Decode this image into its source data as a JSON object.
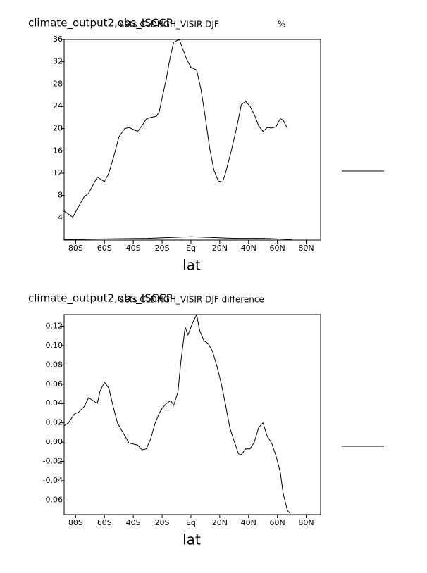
{
  "chart_data": [
    {
      "type": "line",
      "title": "climate_output2,obs_ISCCP",
      "subtitle": "sets CLDHGH_VISIR DJF",
      "units": "%",
      "x_label": "lat",
      "xlim": [
        -88,
        90
      ],
      "ylim": [
        0,
        36
      ],
      "xticks": [
        {
          "value": -80,
          "label": "80S"
        },
        {
          "value": -60,
          "label": "60S"
        },
        {
          "value": -40,
          "label": "40S"
        },
        {
          "value": -20,
          "label": "20S"
        },
        {
          "value": 0,
          "label": "Eq"
        },
        {
          "value": 20,
          "label": "20N"
        },
        {
          "value": 40,
          "label": "40N"
        },
        {
          "value": 60,
          "label": "60N"
        },
        {
          "value": 80,
          "label": "80N"
        }
      ],
      "yticks": [
        4,
        8,
        12,
        16,
        20,
        24,
        28,
        32,
        36
      ],
      "series": [
        {
          "color": "#000000",
          "x": [
            -88,
            -82,
            -78,
            -74,
            -71,
            -65,
            -60,
            -57,
            -53,
            -50,
            -46,
            -43,
            -37,
            -34,
            -31,
            -28,
            -24,
            -22,
            -20,
            -17,
            -15,
            -12,
            -8,
            -6,
            -3,
            0,
            4,
            7,
            10,
            13,
            16,
            19,
            22,
            24,
            28,
            32,
            35,
            38,
            41,
            44,
            47,
            50,
            53,
            56,
            59,
            62,
            64,
            67
          ],
          "values": [
            5.2,
            4.1,
            6,
            7.8,
            8.4,
            11.3,
            10.5,
            12,
            15.5,
            18.5,
            20,
            20.2,
            19.5,
            20.5,
            21.7,
            22,
            22.2,
            23,
            25.5,
            29,
            32,
            35.5,
            36,
            34.5,
            32.5,
            31,
            30.5,
            27,
            22,
            16.5,
            12.5,
            10.6,
            10.4,
            12,
            16,
            20.5,
            24.3,
            24.9,
            24,
            22.5,
            20.5,
            19.5,
            20.2,
            20.1,
            20.3,
            21.8,
            21.5,
            20
          ]
        },
        {
          "color": "#000000",
          "x": [
            -88,
            -60,
            -30,
            -10,
            0,
            10,
            30,
            50,
            70
          ],
          "values": [
            0.1,
            0.2,
            0.3,
            0.5,
            0.6,
            0.5,
            0.3,
            0.3,
            0.1
          ]
        }
      ]
    },
    {
      "type": "line",
      "title": "climate_output2,obs_ISCCP",
      "subtitle": "sets CLDHGH_VISIR DJF difference",
      "x_label": "lat",
      "xlim": [
        -88,
        90
      ],
      "ylim": [
        -0.075,
        0.132
      ],
      "xticks": [
        {
          "value": -80,
          "label": "80S"
        },
        {
          "value": -60,
          "label": "60S"
        },
        {
          "value": -40,
          "label": "40S"
        },
        {
          "value": -20,
          "label": "20S"
        },
        {
          "value": 0,
          "label": "Eq"
        },
        {
          "value": 20,
          "label": "20N"
        },
        {
          "value": 40,
          "label": "40N"
        },
        {
          "value": 60,
          "label": "60N"
        },
        {
          "value": 80,
          "label": "80N"
        }
      ],
      "yticks": [
        -0.06,
        -0.04,
        -0.02,
        {
          "value": 0,
          "label": "0.00"
        },
        0.02,
        0.04,
        0.06,
        0.08,
        {
          "value": 0.1,
          "label": "0.10"
        },
        0.12
      ],
      "series": [
        {
          "color": "#000000",
          "x": [
            -88,
            -85,
            -81,
            -78,
            -74,
            -71,
            -65,
            -63,
            -60,
            -57,
            -54,
            -51,
            -48,
            -46,
            -43,
            -40,
            -37,
            -34,
            -31,
            -28,
            -25,
            -22,
            -20,
            -17,
            -14,
            -12,
            -9,
            -7,
            -4,
            -2,
            1,
            4,
            6,
            9,
            12,
            15,
            18,
            21,
            24,
            27,
            30,
            33,
            35,
            38,
            41,
            44,
            47,
            50,
            53,
            56,
            59,
            62,
            64,
            67,
            69
          ],
          "values": [
            0.017,
            0.02,
            0.029,
            0.031,
            0.037,
            0.046,
            0.04,
            0.053,
            0.062,
            0.056,
            0.037,
            0.02,
            0.012,
            0.007,
            -0.001,
            -0.002,
            -0.003,
            -0.008,
            -0.007,
            0.003,
            0.019,
            0.03,
            0.035,
            0.04,
            0.043,
            0.038,
            0.052,
            0.083,
            0.119,
            0.111,
            0.123,
            0.132,
            0.116,
            0.105,
            0.102,
            0.094,
            0.079,
            0.061,
            0.039,
            0.015,
            0.001,
            -0.012,
            -0.013,
            -0.007,
            -0.007,
            0,
            0.015,
            0.02,
            0.006,
            -0.001,
            -0.014,
            -0.031,
            -0.053,
            -0.071,
            -0.074
          ]
        }
      ]
    }
  ]
}
